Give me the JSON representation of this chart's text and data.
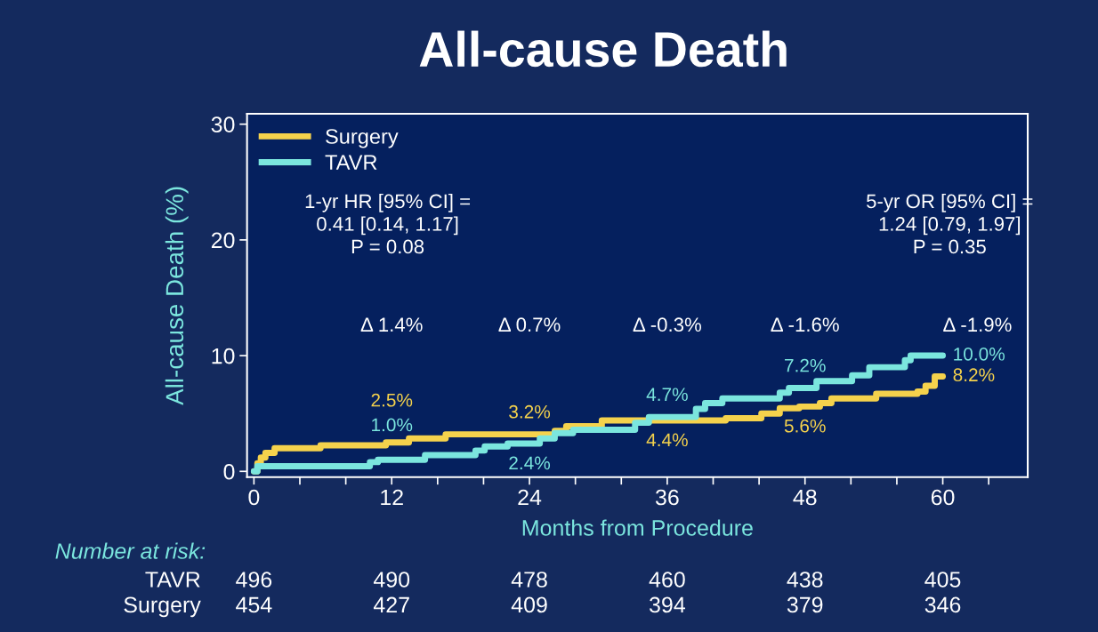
{
  "chart_data": {
    "type": "step",
    "title": "All-cause Death",
    "xlabel": "Months from Procedure",
    "ylabel": "All-cause Death (%)",
    "xlim": [
      -0.6,
      67.4
    ],
    "ylim": [
      -0.5,
      30.9
    ],
    "xticks": [
      0,
      {
        "value": 4,
        "label": null
      },
      {
        "value": 8,
        "label": null
      },
      12,
      {
        "value": 16,
        "label": null
      },
      {
        "value": 20,
        "label": null
      },
      24,
      {
        "value": 28,
        "label": null
      },
      {
        "value": 32,
        "label": null
      },
      36,
      {
        "value": 40,
        "label": null
      },
      {
        "value": 44,
        "label": null
      },
      48,
      {
        "value": 52,
        "label": null
      },
      {
        "value": 56,
        "label": null
      },
      60,
      {
        "value": 64,
        "label": null
      }
    ],
    "yticks": [
      0,
      10,
      20,
      30
    ],
    "grid": false,
    "legend": "top left",
    "marker": "none",
    "line_style": "solid",
    "series": [
      {
        "name": "Surgery",
        "color": "#f5d24c",
        "x": [
          0,
          0.3,
          0.6,
          1.0,
          1.8,
          5.8,
          11.5,
          12,
          13.5,
          16.7,
          24,
          26.2,
          27.2,
          30.3,
          36,
          41.1,
          44.2,
          45.8,
          47.5,
          48,
          49.3,
          50.3,
          54.2,
          57.8,
          58.5,
          59.3,
          60
        ],
        "values": [
          0,
          0.7,
          1.2,
          1.6,
          2.0,
          2.25,
          2.5,
          2.5,
          2.85,
          3.2,
          3.2,
          3.5,
          3.9,
          4.4,
          4.4,
          4.6,
          5.0,
          5.45,
          5.6,
          5.6,
          5.9,
          6.3,
          6.7,
          6.9,
          7.4,
          8.2,
          8.2
        ],
        "value_labels": [
          null,
          null,
          null,
          null,
          null,
          null,
          null,
          "2.5%",
          null,
          null,
          "3.2%",
          null,
          null,
          null,
          "4.4%",
          null,
          null,
          null,
          null,
          "5.6%",
          null,
          null,
          null,
          null,
          null,
          null,
          "8.2%"
        ]
      },
      {
        "name": "TAVR",
        "color": "#7be6de",
        "x": [
          0,
          0.3,
          10.1,
          10.8,
          12,
          14.9,
          19.3,
          20.1,
          22.1,
          24,
          24.9,
          26.2,
          27.8,
          33.2,
          34.4,
          36,
          38.5,
          39.3,
          40.8,
          45.8,
          46.6,
          48,
          49.0,
          52.1,
          53.6,
          56.7,
          57.2,
          60
        ],
        "values": [
          0,
          0.45,
          0.8,
          1.0,
          1.0,
          1.4,
          1.8,
          2.15,
          2.4,
          2.4,
          2.85,
          3.3,
          3.6,
          4.2,
          4.7,
          4.7,
          5.4,
          5.9,
          6.3,
          6.8,
          7.2,
          7.2,
          7.8,
          8.3,
          9.0,
          9.6,
          10.0,
          10.0
        ],
        "value_labels": [
          null,
          null,
          null,
          null,
          "1.0%",
          null,
          null,
          null,
          null,
          "2.4%",
          null,
          null,
          null,
          null,
          null,
          "4.7%",
          null,
          null,
          null,
          null,
          null,
          "7.2%",
          null,
          null,
          null,
          null,
          null,
          "10.0%"
        ]
      }
    ],
    "annotations": [
      "1-yr HR [95% CI] =\n0.41 [0.14, 1.17]\nP = 0.08",
      "5-yr OR [95% CI] =\n1.24 [0.79, 1.97]\nP = 0.35",
      "Δ 1.4%",
      "Δ 0.7%",
      "Δ -0.3%",
      "Δ -1.6%",
      "Δ -1.9%",
      "Number at risk:",
      "TAVR",
      "496",
      "490",
      "478",
      "460",
      "438",
      "405",
      "Surgery",
      "454",
      "427",
      "409",
      "394",
      "379",
      "346"
    ]
  }
}
